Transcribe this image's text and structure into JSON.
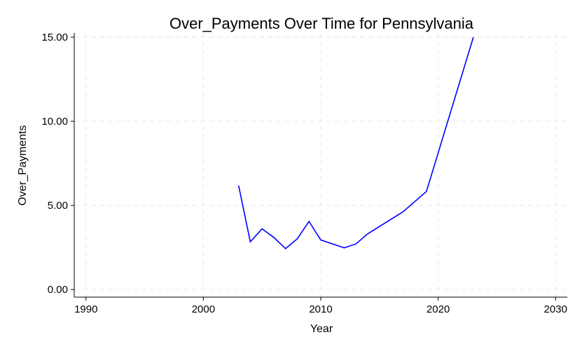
{
  "chart_data": {
    "type": "line",
    "title": "Over_Payments Over Time for Pennsylvania",
    "xlabel": "Year",
    "ylabel": "Over_Payments",
    "xlim": [
      1989,
      2031
    ],
    "ylim": [
      -0.45,
      15.25
    ],
    "x_ticks": [
      1990,
      2000,
      2010,
      2020,
      2030
    ],
    "y_ticks": [
      0,
      5,
      10,
      15
    ],
    "y_tick_labels": [
      "0.00",
      "5.00",
      "10.00",
      "15.00"
    ],
    "grid": true,
    "legend": "none",
    "series": [
      {
        "color": "#0000ff",
        "x": [
          2003,
          2004,
          2005,
          2006,
          2007,
          2008,
          2009,
          2010,
          2012,
          2013,
          2014,
          2017,
          2019,
          2023
        ],
        "y": [
          6.18,
          2.84,
          3.61,
          3.1,
          2.43,
          3.02,
          4.05,
          2.95,
          2.48,
          2.71,
          3.31,
          4.62,
          5.83,
          15.0
        ]
      }
    ]
  }
}
